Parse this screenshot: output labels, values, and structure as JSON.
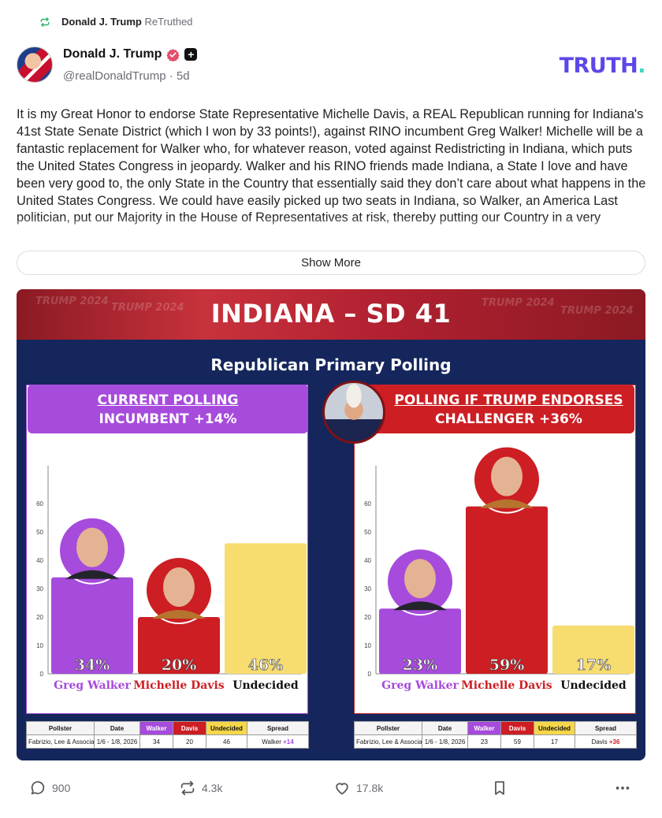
{
  "retruth": {
    "author": "Donald J. Trump",
    "label": "ReTruthed"
  },
  "post": {
    "display_name": "Donald J. Trump",
    "handle": "@realDonaldTrump",
    "age": "· 5d",
    "text": "It is my Great Honor to endorse State Representative Michelle Davis, a REAL Republican running for Indiana's 41st State Senate District (which I won by 33 points!), against RINO incumbent Greg Walker! Michelle will be a fantastic replacement for Walker who, for whatever reason, voted against Redistricting in Indiana, which puts the United States Congress in jeopardy. Walker and his RINO friends made Indiana, a State I love and have been very good to, the only State in the Country that essentially said they don’t care about what happens in the United States Congress. We could have easily picked up two seats in Indiana, so Walker, an America Last politician, put our Majority in the House of Representatives at risk, thereby putting our Country in a very",
    "show_more": "Show More"
  },
  "brand": {
    "name": "TRUTH",
    "dot": ".",
    "color": "#5b48e8",
    "dot_color": "#3ed8c4"
  },
  "graphic": {
    "title": "INDIANA – SD 41",
    "banner_watermarks": [
      "TRUMP 2024",
      "TRUMP 2024",
      "TRUMP 2024",
      "TRUMP 2024"
    ],
    "subtitle": "Republican Primary Polling",
    "left_heading_1": "CURRENT POLLING",
    "left_heading_2": "INCUMBENT +14%",
    "right_heading_1": "POLLING IF TRUMP ENDORSES",
    "right_heading_2": "CHALLENGER +36%",
    "table": {
      "headers": [
        "Pollster",
        "Date",
        "Walker",
        "Davis",
        "Undecided",
        "Spread"
      ],
      "left_row": {
        "pollster": "Fabrizio, Lee & Associates",
        "date": "1/6 - 1/8, 2026",
        "walker": "34",
        "davis": "20",
        "undecided": "46",
        "spread_name": "Walker",
        "spread_value": "+14"
      },
      "right_row": {
        "pollster": "Fabrizio, Lee & Associates",
        "date": "1/6 - 1/8, 2026",
        "walker": "23",
        "davis": "59",
        "undecided": "17",
        "spread_name": "Davis",
        "spread_value": "+36"
      }
    }
  },
  "chart_data": [
    {
      "type": "bar",
      "title": "CURRENT POLLING",
      "categories": [
        "Greg Walker",
        "Michelle Davis",
        "Undecided"
      ],
      "values": [
        34,
        20,
        46
      ],
      "value_labels": [
        "34%",
        "20%",
        "46%"
      ],
      "colors": [
        "#a64bdc",
        "#cc1e23",
        "#f7dc6f"
      ],
      "label_colors": [
        "#a64bdc",
        "#cc1e23",
        "#111111"
      ],
      "yticks": [
        "0",
        "10",
        "20",
        "30",
        "40",
        "50",
        "60"
      ],
      "ylim": [
        0,
        70
      ],
      "grid": false
    },
    {
      "type": "bar",
      "title": "POLLING IF TRUMP ENDORSES",
      "categories": [
        "Greg Walker",
        "Michelle Davis",
        "Undecided"
      ],
      "values": [
        23,
        59,
        17
      ],
      "value_labels": [
        "23%",
        "59%",
        "17%"
      ],
      "colors": [
        "#a64bdc",
        "#cc1e23",
        "#f7dc6f"
      ],
      "label_colors": [
        "#a64bdc",
        "#cc1e23",
        "#111111"
      ],
      "yticks": [
        "0",
        "10",
        "20",
        "30",
        "40",
        "50",
        "60"
      ],
      "ylim": [
        0,
        70
      ],
      "grid": false
    }
  ],
  "actions": {
    "replies": "900",
    "retruths": "4.3k",
    "likes": "17.8k"
  }
}
